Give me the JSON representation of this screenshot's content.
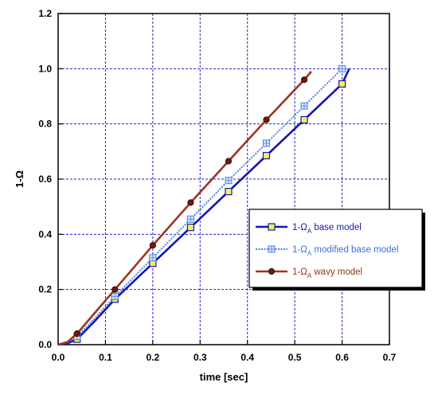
{
  "chart_data": {
    "type": "line",
    "xlabel": "time [sec]",
    "ylabel": "1-Ω",
    "xlim": [
      0,
      0.7
    ],
    "ylim": [
      0,
      1.2
    ],
    "xticks": [
      "0.0",
      "0.1",
      "0.2",
      "0.3",
      "0.4",
      "0.5",
      "0.6",
      "0.7"
    ],
    "yticks": [
      "0.0",
      "0.2",
      "0.4",
      "0.6",
      "0.8",
      "1.0",
      "1.2"
    ],
    "grid": true,
    "legend_position": "center-right",
    "series": [
      {
        "name": "1-ΩA base model",
        "label_main": "1-Ω",
        "label_sub": "A",
        "label_rest": " base model",
        "color": "#1515b5",
        "label_color": "#1a1ab0",
        "line_style": "solid",
        "marker": "square",
        "marker_fill": "#f2f25a",
        "marker_stroke": "#1515b5",
        "x": [
          0.0,
          0.02,
          0.04,
          0.08,
          0.12,
          0.2,
          0.28,
          0.36,
          0.44,
          0.52,
          0.6,
          0.615
        ],
        "y": [
          0.0,
          0.005,
          0.02,
          0.09,
          0.165,
          0.295,
          0.425,
          0.555,
          0.685,
          0.815,
          0.945,
          1.0
        ],
        "markers_x": [
          0.04,
          0.12,
          0.2,
          0.28,
          0.36,
          0.44,
          0.52,
          0.6
        ],
        "markers_y": [
          0.02,
          0.165,
          0.295,
          0.425,
          0.555,
          0.685,
          0.815,
          0.945
        ]
      },
      {
        "name": "1-ΩA modified base model",
        "label_main": "1-Ω",
        "label_sub": "A",
        "label_rest": " modified base model",
        "color": "#4a82e0",
        "label_color": "#3a6fd8",
        "line_style": "dotted",
        "marker": "square-grid",
        "marker_fill": "#d6e4fb",
        "marker_stroke": "#4a82e0",
        "x": [
          0.0,
          0.02,
          0.04,
          0.08,
          0.12,
          0.2,
          0.28,
          0.36,
          0.44,
          0.52,
          0.6
        ],
        "y": [
          0.0,
          0.008,
          0.03,
          0.1,
          0.175,
          0.315,
          0.455,
          0.595,
          0.73,
          0.865,
          1.0
        ],
        "markers_x": [
          0.04,
          0.12,
          0.2,
          0.28,
          0.36,
          0.44,
          0.52,
          0.6
        ],
        "markers_y": [
          0.03,
          0.175,
          0.315,
          0.455,
          0.595,
          0.73,
          0.865,
          1.0
        ]
      },
      {
        "name": "1-ΩA wavy model",
        "label_main": "1-Ω",
        "label_sub": "A",
        "label_rest": " wavy model",
        "color": "#9b3520",
        "label_color": "#8b3a1a",
        "line_style": "solid",
        "marker": "circle",
        "marker_fill": "#6b1a12",
        "marker_stroke": "#3a0c08",
        "x": [
          0.0,
          0.02,
          0.04,
          0.08,
          0.12,
          0.2,
          0.28,
          0.36,
          0.44,
          0.52,
          0.535
        ],
        "y": [
          0.0,
          0.01,
          0.04,
          0.12,
          0.2,
          0.36,
          0.515,
          0.665,
          0.815,
          0.96,
          0.99
        ],
        "markers_x": [
          0.04,
          0.12,
          0.2,
          0.28,
          0.36,
          0.44,
          0.52
        ],
        "markers_y": [
          0.04,
          0.2,
          0.36,
          0.515,
          0.665,
          0.815,
          0.96
        ]
      }
    ]
  }
}
